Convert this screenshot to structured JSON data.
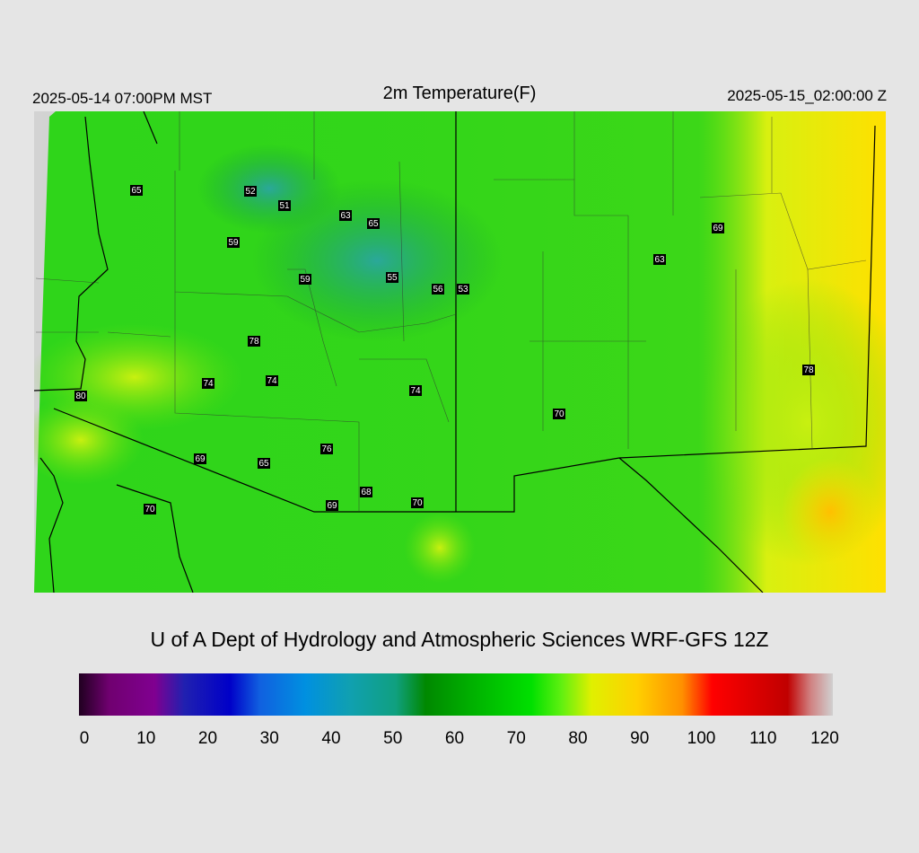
{
  "header": {
    "local_time": "2025-05-14 07:00PM MST",
    "title": "2m Temperature(F)",
    "valid_time": "2025-05-15_02:00:00 Z"
  },
  "stations": [
    65,
    52,
    51,
    63,
    65,
    59,
    59,
    55,
    56,
    53,
    69,
    63,
    78,
    74,
    74,
    74,
    80,
    78,
    70,
    76,
    69,
    65,
    68,
    69,
    70,
    70
  ],
  "credit": "U of A Dept of Hydrology and Atmospheric Sciences WRF-GFS 12Z",
  "colorbar": {
    "lim": [
      0,
      120
    ],
    "ticks": [
      0,
      10,
      20,
      30,
      40,
      50,
      60,
      70,
      80,
      90,
      100,
      110,
      120
    ]
  }
}
